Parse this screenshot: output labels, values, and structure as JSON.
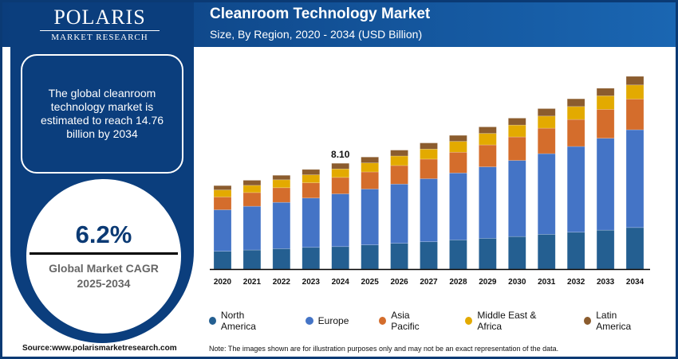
{
  "brand": {
    "name": "POLARIS",
    "tagline": "MARKET RESEARCH"
  },
  "info_text": "The global cleanroom technology market is estimated to reach 14.76 billion by 2034",
  "cagr": {
    "value": "6.2%",
    "label": "Global Market CAGR",
    "period": "2025-2034"
  },
  "source": "Source:www.polarismarketresearch.com",
  "note": "Note: The images shown are for illustration purposes only and may not be an exact representation of the data.",
  "chart_data": {
    "type": "bar",
    "stacked": true,
    "title": "Cleanroom Technology Market",
    "subtitle": "Size, By Region, 2020 - 2034 (USD Billion)",
    "categories": [
      "2020",
      "2021",
      "2022",
      "2023",
      "2024",
      "2025",
      "2026",
      "2027",
      "2028",
      "2029",
      "2030",
      "2031",
      "2032",
      "2033",
      "2034"
    ],
    "series": [
      {
        "name": "North America",
        "color": "#245f91",
        "values": [
          1.36,
          1.46,
          1.56,
          1.66,
          1.72,
          1.85,
          1.97,
          2.09,
          2.23,
          2.35,
          2.49,
          2.66,
          2.82,
          2.98,
          3.18
        ]
      },
      {
        "name": "Europe",
        "color": "#4474c6",
        "values": [
          3.18,
          3.35,
          3.55,
          3.78,
          4.04,
          4.28,
          4.54,
          4.83,
          5.13,
          5.48,
          5.83,
          6.18,
          6.57,
          7.04,
          7.49
        ]
      },
      {
        "name": "Asia Pacific",
        "color": "#d46d2c",
        "values": [
          0.98,
          1.05,
          1.12,
          1.17,
          1.26,
          1.31,
          1.42,
          1.5,
          1.59,
          1.68,
          1.8,
          1.95,
          2.07,
          2.21,
          2.35
        ]
      },
      {
        "name": "Middle East & Africa",
        "color": "#e3aa00",
        "values": [
          0.54,
          0.55,
          0.61,
          0.61,
          0.65,
          0.69,
          0.73,
          0.77,
          0.83,
          0.88,
          0.91,
          0.93,
          0.99,
          1.04,
          1.08
        ]
      },
      {
        "name": "Latin America",
        "color": "#8b5c2e",
        "values": [
          0.33,
          0.39,
          0.34,
          0.41,
          0.43,
          0.45,
          0.45,
          0.47,
          0.46,
          0.5,
          0.53,
          0.57,
          0.59,
          0.58,
          0.66
        ]
      }
    ],
    "annotations": [
      {
        "category": "2024",
        "text": "8.10"
      }
    ],
    "ylim": [
      0,
      15
    ],
    "grid": false,
    "legend": "bottom"
  }
}
